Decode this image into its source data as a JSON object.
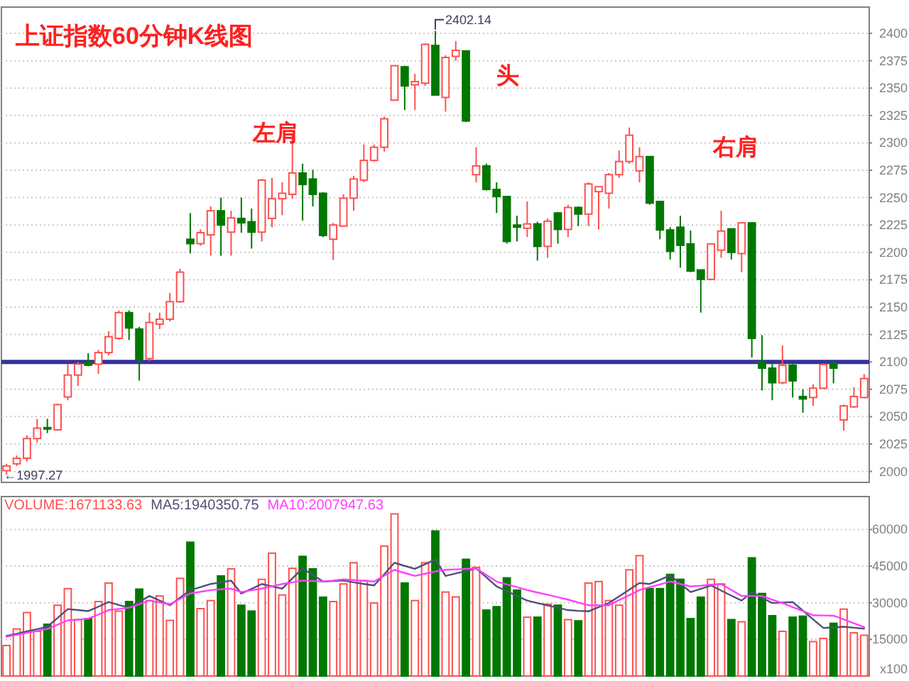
{
  "chart_data": [
    {
      "type": "candlestick",
      "title": "上证指数60分钟K线图",
      "categories": [
        null,
        null,
        null,
        null,
        null,
        null,
        null,
        null,
        null,
        null,
        null,
        null,
        null,
        null,
        null,
        null,
        null,
        null,
        null,
        null,
        null,
        null,
        null,
        null,
        null,
        null,
        null,
        null,
        null,
        null,
        null,
        null,
        null,
        null,
        null,
        null,
        null,
        null,
        null,
        null,
        null,
        null,
        null,
        null,
        null,
        null,
        null,
        null,
        null,
        null,
        null,
        null,
        null,
        null,
        null,
        null,
        null,
        null,
        null,
        null,
        null,
        null,
        null,
        null,
        null,
        null,
        null,
        null,
        null,
        null,
        null,
        null,
        null,
        null,
        null,
        null,
        null,
        null,
        null,
        null,
        null,
        null,
        null,
        null,
        null
      ],
      "ohlc": [
        [
          2000.7,
          2007,
          1997.27,
          2005
        ],
        [
          2007,
          2014.5,
          2005,
          2012
        ],
        [
          2012,
          2033,
          2009,
          2030
        ],
        [
          2030,
          2048,
          2026.5,
          2039.5
        ],
        [
          2040,
          2048,
          2035,
          2039
        ],
        [
          2038,
          2062,
          2037,
          2061
        ],
        [
          2068,
          2098,
          2065,
          2088
        ],
        [
          2088,
          2100,
          2078,
          2098
        ],
        [
          2100,
          2108,
          2096,
          2097
        ],
        [
          2098,
          2111,
          2089,
          2108.5
        ],
        [
          2108.5,
          2128,
          2106,
          2123
        ],
        [
          2121.5,
          2147,
          2120,
          2145
        ],
        [
          2145,
          2147,
          2120,
          2131
        ],
        [
          2130,
          2132,
          2083,
          2102
        ],
        [
          2103,
          2145,
          2101,
          2136
        ],
        [
          2134.5,
          2145,
          2130,
          2139
        ],
        [
          2139,
          2163,
          2137,
          2155
        ],
        [
          2155,
          2185,
          2154,
          2182
        ],
        [
          2212,
          2236,
          2199,
          2208
        ],
        [
          2208,
          2221,
          2206,
          2218
        ],
        [
          2216,
          2242,
          2197,
          2238
        ],
        [
          2238,
          2250,
          2197,
          2225
        ],
        [
          2218.5,
          2238,
          2197,
          2231.5
        ],
        [
          2231,
          2250,
          2218,
          2227
        ],
        [
          2228,
          2240,
          2203.5,
          2218.5
        ],
        [
          2218.5,
          2267,
          2210,
          2266
        ],
        [
          2231,
          2268,
          2223,
          2249
        ],
        [
          2249,
          2264,
          2234,
          2254
        ],
        [
          2253,
          2307,
          2249,
          2272.5
        ],
        [
          2272.5,
          2281,
          2229,
          2262
        ],
        [
          2267,
          2275.5,
          2242,
          2253
        ],
        [
          2254,
          2255,
          2214,
          2215.5
        ],
        [
          2212,
          2227,
          2193,
          2225
        ],
        [
          2224,
          2253,
          2223.5,
          2249.5
        ],
        [
          2249.5,
          2270,
          2238,
          2267
        ],
        [
          2266,
          2298.5,
          2264,
          2284
        ],
        [
          2284,
          2298.5,
          2283,
          2296
        ],
        [
          2296,
          2324,
          2292,
          2322
        ],
        [
          2339,
          2370.5,
          2338.5,
          2370.5
        ],
        [
          2369.5,
          2370.5,
          2330,
          2352
        ],
        [
          2353,
          2363,
          2330,
          2356
        ],
        [
          2354.5,
          2391,
          2352,
          2390
        ],
        [
          2389,
          2402.14,
          2343.7,
          2343.7
        ],
        [
          2341.5,
          2380,
          2328.5,
          2378
        ],
        [
          2379,
          2393,
          2375,
          2384.5
        ],
        [
          2384,
          2384,
          2319,
          2320
        ],
        [
          2271,
          2296,
          2264,
          2279
        ],
        [
          2279,
          2281,
          2256.5,
          2257.5
        ],
        [
          2257.5,
          2264,
          2236,
          2251
        ],
        [
          2251,
          2251,
          2208,
          2210
        ],
        [
          2225,
          2233.5,
          2210,
          2223
        ],
        [
          2222,
          2246.5,
          2214,
          2226
        ],
        [
          2226,
          2228,
          2192.5,
          2205.5
        ],
        [
          2205.5,
          2231,
          2195,
          2228.5
        ],
        [
          2236,
          2237,
          2208,
          2221
        ],
        [
          2221,
          2243.5,
          2214,
          2241
        ],
        [
          2241,
          2242,
          2224,
          2235
        ],
        [
          2235,
          2264,
          2224,
          2262.5
        ],
        [
          2255.5,
          2260,
          2221,
          2260
        ],
        [
          2254,
          2272.5,
          2240,
          2271
        ],
        [
          2271,
          2293,
          2268,
          2283
        ],
        [
          2283,
          2314,
          2281,
          2307
        ],
        [
          2274.5,
          2296,
          2264,
          2287.5
        ],
        [
          2287.5,
          2287.5,
          2243.6,
          2245
        ],
        [
          2246.5,
          2246.5,
          2212,
          2220.5
        ],
        [
          2220.5,
          2223,
          2193.5,
          2201
        ],
        [
          2223,
          2233.5,
          2186,
          2206.5
        ],
        [
          2207.8,
          2220,
          2182,
          2183
        ],
        [
          2184,
          2184,
          2145,
          2175.4
        ],
        [
          2175.4,
          2207.8,
          2174.5,
          2207.8
        ],
        [
          2202,
          2238,
          2195,
          2219.5
        ],
        [
          2221.5,
          2221.5,
          2193.5,
          2200
        ],
        [
          2199,
          2227,
          2182,
          2227
        ],
        [
          2227,
          2227,
          2104,
          2121.5
        ],
        [
          2100,
          2124.5,
          2074,
          2094.3
        ],
        [
          2094.3,
          2098,
          2065,
          2081
        ],
        [
          2081,
          2115,
          2079.6,
          2097
        ],
        [
          2097,
          2098,
          2067.5,
          2082.7
        ],
        [
          2068.4,
          2075,
          2053.7,
          2066.2
        ],
        [
          2067.5,
          2079.6,
          2059.8,
          2076
        ],
        [
          2076,
          2098.6,
          2075.3,
          2097.7
        ],
        [
          2098.6,
          2101,
          2080.5,
          2094.3
        ],
        [
          2047,
          2061,
          2037.3,
          2059.8
        ],
        [
          2059,
          2077,
          2058,
          2068.4
        ],
        [
          2067.5,
          2089,
          2066.7,
          2084.8
        ]
      ],
      "colors": [
        "#ff5050",
        "#ff5050",
        "#ff5050",
        "#ff5050",
        "#007800",
        "#ff5050",
        "#ff5050",
        "#ff5050",
        "#007800",
        "#ff5050",
        "#ff5050",
        "#ff5050",
        "#007800",
        "#007800",
        "#ff5050",
        "#ff5050",
        "#ff5050",
        "#ff5050",
        "#007800",
        "#ff5050",
        "#ff5050",
        "#007800",
        "#ff5050",
        "#007800",
        "#007800",
        "#ff5050",
        "#ff5050",
        "#ff5050",
        "#ff5050",
        "#007800",
        "#007800",
        "#007800",
        "#ff5050",
        "#ff5050",
        "#ff5050",
        "#ff5050",
        "#ff5050",
        "#ff5050",
        "#ff5050",
        "#007800",
        "#ff5050",
        "#ff5050",
        "#007800",
        "#ff5050",
        "#ff5050",
        "#007800",
        "#ff5050",
        "#007800",
        "#007800",
        "#007800",
        "#007800",
        "#ff5050",
        "#007800",
        "#ff5050",
        "#007800",
        "#ff5050",
        "#007800",
        "#ff5050",
        "#ff5050",
        "#ff5050",
        "#ff5050",
        "#ff5050",
        "#ff5050",
        "#007800",
        "#007800",
        "#007800",
        "#007800",
        "#007800",
        "#007800",
        "#ff5050",
        "#ff5050",
        "#007800",
        "#ff5050",
        "#007800",
        "#007800",
        "#007800",
        "#ff5050",
        "#007800",
        "#007800",
        "#ff5050",
        "#ff5050",
        "#007800",
        "#ff5050",
        "#ff5050",
        "#ff5050"
      ],
      "ylim": [
        1990,
        2424
      ],
      "yticks": [
        2000,
        2025,
        2050,
        2075,
        2100,
        2125,
        2150,
        2175,
        2200,
        2225,
        2250,
        2275,
        2300,
        2325,
        2350,
        2375,
        2400
      ],
      "grid": "y",
      "ref_lines": [
        {
          "axis": "y",
          "value": 2100,
          "color": "#333399"
        }
      ],
      "annotations": [
        "左肩",
        "头",
        "右肩",
        "2402.14",
        "←1997.27"
      ]
    },
    {
      "type": "bar",
      "categories": [
        null,
        null,
        null,
        null,
        null,
        null,
        null,
        null,
        null,
        null,
        null,
        null,
        null,
        null,
        null,
        null,
        null,
        null,
        null,
        null,
        null,
        null,
        null,
        null,
        null,
        null,
        null,
        null,
        null,
        null,
        null,
        null,
        null,
        null,
        null,
        null,
        null,
        null,
        null,
        null,
        null,
        null,
        null,
        null,
        null,
        null,
        null,
        null,
        null,
        null,
        null,
        null,
        null,
        null,
        null,
        null,
        null,
        null,
        null,
        null,
        null,
        null,
        null,
        null,
        null,
        null,
        null,
        null,
        null,
        null,
        null,
        null,
        null,
        null,
        null,
        null,
        null,
        null,
        null,
        null,
        null,
        null,
        null,
        null,
        null
      ],
      "series": [
        {
          "name": "VOLUME:1671133.63",
          "type": "bar",
          "values": [
            12500,
            19300,
            26000,
            18300,
            21200,
            29000,
            35800,
            23100,
            23500,
            30500,
            38100,
            26600,
            30500,
            35600,
            30900,
            32800,
            22800,
            40000,
            54800,
            27600,
            30900,
            41000,
            43900,
            29000,
            26600,
            39600,
            50300,
            33200,
            44100,
            49000,
            43900,
            32300,
            30500,
            37700,
            46400,
            39100,
            29900,
            53200,
            66400,
            38100,
            30900,
            46400,
            59400,
            34400,
            32400,
            47800,
            44500,
            27000,
            28400,
            40200,
            35200,
            24100,
            24100,
            29400,
            29000,
            23100,
            22600,
            38100,
            38700,
            30900,
            29000,
            43500,
            49300,
            35800,
            35800,
            41600,
            39600,
            23500,
            32300,
            39600,
            37700,
            23100,
            22200,
            48400,
            33800,
            24700,
            18300,
            24100,
            24500,
            14100,
            15400,
            21600,
            27400,
            17700,
            16700
          ],
          "colors": [
            "#ff5050",
            "#ff5050",
            "#ff5050",
            "#ff5050",
            "#007800",
            "#ff5050",
            "#ff5050",
            "#ff5050",
            "#007800",
            "#ff5050",
            "#ff5050",
            "#ff5050",
            "#007800",
            "#007800",
            "#ff5050",
            "#ff5050",
            "#ff5050",
            "#ff5050",
            "#007800",
            "#ff5050",
            "#ff5050",
            "#007800",
            "#ff5050",
            "#007800",
            "#007800",
            "#ff5050",
            "#ff5050",
            "#ff5050",
            "#ff5050",
            "#007800",
            "#007800",
            "#007800",
            "#ff5050",
            "#ff5050",
            "#ff5050",
            "#ff5050",
            "#ff5050",
            "#ff5050",
            "#ff5050",
            "#007800",
            "#ff5050",
            "#ff5050",
            "#007800",
            "#ff5050",
            "#ff5050",
            "#007800",
            "#ff5050",
            "#007800",
            "#007800",
            "#007800",
            "#007800",
            "#ff5050",
            "#007800",
            "#ff5050",
            "#007800",
            "#ff5050",
            "#007800",
            "#ff5050",
            "#ff5050",
            "#ff5050",
            "#ff5050",
            "#ff5050",
            "#ff5050",
            "#007800",
            "#007800",
            "#007800",
            "#007800",
            "#007800",
            "#007800",
            "#ff5050",
            "#ff5050",
            "#007800",
            "#ff5050",
            "#007800",
            "#007800",
            "#007800",
            "#ff5050",
            "#007800",
            "#007800",
            "#ff5050",
            "#ff5050",
            "#007800",
            "#ff5050",
            "#ff5050",
            "#ff5050"
          ]
        },
        {
          "name": "MA5:1940350.75",
          "type": "line",
          "color": "#505078",
          "values": [
            16400,
            17300,
            18300,
            19200,
            20200,
            23800,
            27400,
            27000,
            26600,
            28400,
            30300,
            29100,
            28000,
            30400,
            32800,
            30900,
            29000,
            32100,
            35200,
            36400,
            37700,
            38400,
            39100,
            33800,
            35700,
            37700,
            36700,
            35800,
            40000,
            44100,
            41400,
            38700,
            38900,
            39100,
            38400,
            37700,
            37100,
            41700,
            46400,
            45100,
            43900,
            45800,
            47800,
            41000,
            42000,
            43000,
            44100,
            40400,
            36700,
            34800,
            32800,
            30900,
            29900,
            28900,
            28000,
            27000,
            26700,
            26500,
            28200,
            29900,
            32600,
            35400,
            38100,
            37700,
            39400,
            41200,
            37800,
            34400,
            35700,
            37100,
            35000,
            32900,
            30900,
            34400,
            32100,
            29900,
            30100,
            30300,
            26800,
            23200,
            19700,
            19900,
            20200,
            19800,
            19400
          ]
        },
        {
          "name": "MA10:2007947.63",
          "type": "line",
          "color": "#ff40ff",
          "values": [
            16100,
            16900,
            17700,
            18500,
            19300,
            21000,
            22800,
            23100,
            23500,
            25200,
            27000,
            27500,
            28000,
            29400,
            30900,
            30100,
            29400,
            31600,
            33800,
            34500,
            35200,
            35500,
            35800,
            34400,
            35100,
            35800,
            36700,
            37700,
            38400,
            39100,
            38900,
            38700,
            39100,
            39600,
            39300,
            39000,
            38700,
            41100,
            43500,
            42200,
            41000,
            41900,
            42800,
            43500,
            43700,
            43900,
            44100,
            41400,
            38700,
            37500,
            36400,
            35200,
            34200,
            33300,
            32300,
            31300,
            30100,
            29000,
            29000,
            29000,
            31100,
            33100,
            35200,
            36400,
            37500,
            38700,
            37700,
            36700,
            37000,
            37400,
            37700,
            35200,
            32800,
            32800,
            32800,
            31300,
            29900,
            28200,
            26600,
            24900,
            24800,
            24700,
            23200,
            21600,
            20100
          ]
        }
      ],
      "ylim": [
        0,
        73500
      ],
      "yticks": [
        15000,
        30000,
        45000,
        60000
      ],
      "ylabel": "x100",
      "grid": "y",
      "legend": "top left"
    }
  ]
}
